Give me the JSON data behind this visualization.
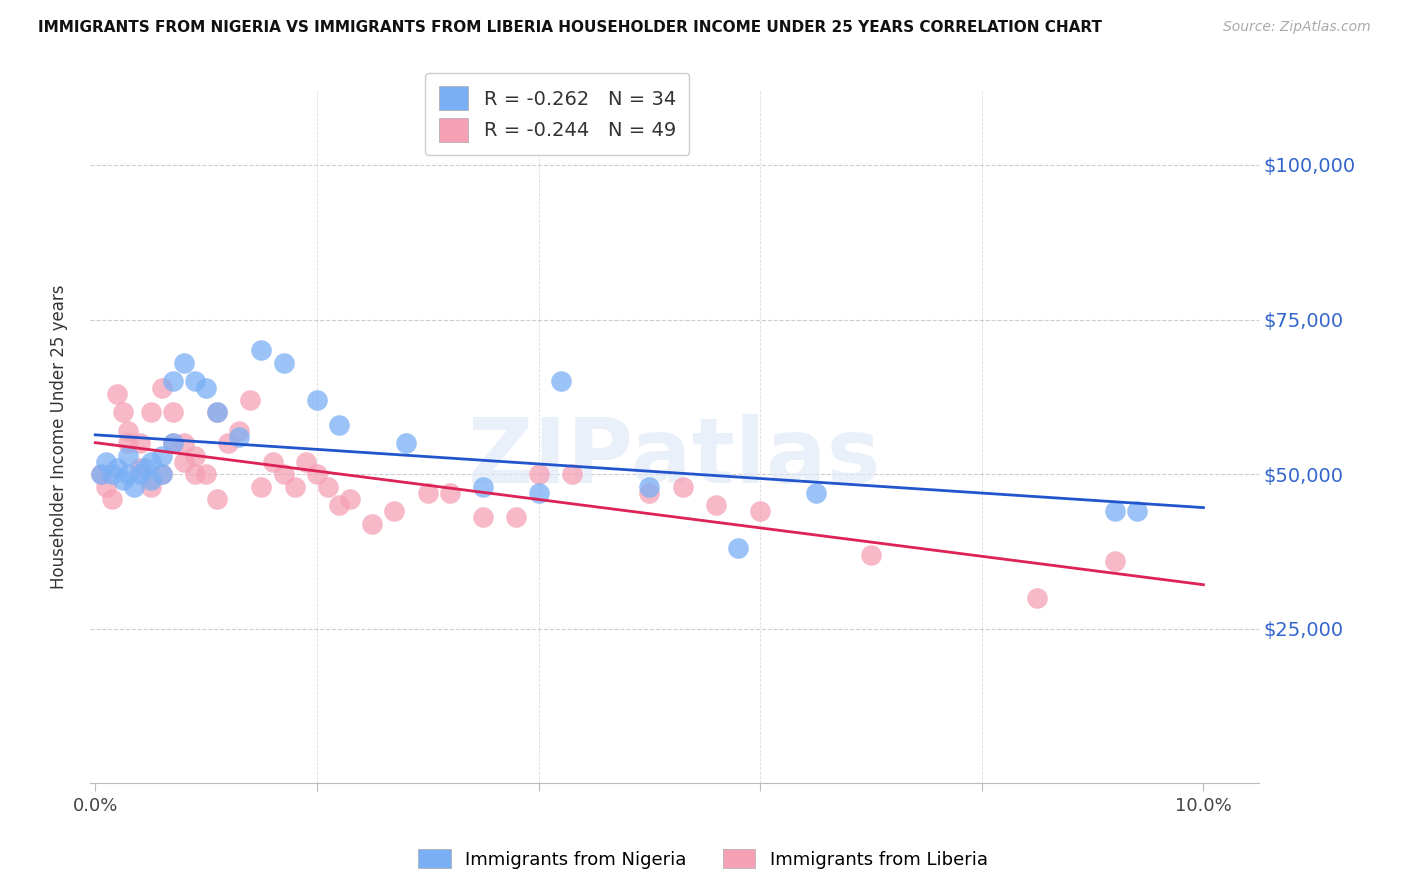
{
  "title": "IMMIGRANTS FROM NIGERIA VS IMMIGRANTS FROM LIBERIA HOUSEHOLDER INCOME UNDER 25 YEARS CORRELATION CHART",
  "source": "Source: ZipAtlas.com",
  "ylabel": "Householder Income Under 25 years",
  "ytick_labels": [
    "$25,000",
    "$50,000",
    "$75,000",
    "$100,000"
  ],
  "ytick_values": [
    25000,
    50000,
    75000,
    100000
  ],
  "ylim": [
    0,
    112000
  ],
  "xlim": [
    -0.0005,
    0.105
  ],
  "legend_nigeria": "R = -0.262   N = 34",
  "legend_liberia": "R = -0.244   N = 49",
  "nigeria_color": "#7aaff5",
  "liberia_color": "#f5a0b5",
  "nigeria_line_color": "#2255cc",
  "liberia_line_color": "#dd2255",
  "watermark": "ZIPatlas",
  "nigeria_x": [
    0.0005,
    0.001,
    0.0015,
    0.002,
    0.0025,
    0.003,
    0.003,
    0.0035,
    0.004,
    0.0045,
    0.005,
    0.005,
    0.006,
    0.006,
    0.007,
    0.007,
    0.008,
    0.009,
    0.01,
    0.011,
    0.013,
    0.015,
    0.017,
    0.02,
    0.022,
    0.028,
    0.035,
    0.04,
    0.042,
    0.05,
    0.058,
    0.065,
    0.092,
    0.094
  ],
  "nigeria_y": [
    50000,
    52000,
    50000,
    51000,
    49000,
    50000,
    53000,
    48000,
    50000,
    51000,
    49000,
    52000,
    50000,
    53000,
    65000,
    55000,
    68000,
    65000,
    64000,
    60000,
    56000,
    70000,
    68000,
    62000,
    58000,
    55000,
    48000,
    47000,
    65000,
    48000,
    38000,
    47000,
    44000,
    44000
  ],
  "liberia_x": [
    0.0005,
    0.001,
    0.0015,
    0.002,
    0.0025,
    0.003,
    0.003,
    0.004,
    0.004,
    0.005,
    0.005,
    0.006,
    0.006,
    0.007,
    0.007,
    0.008,
    0.008,
    0.009,
    0.009,
    0.01,
    0.011,
    0.011,
    0.012,
    0.013,
    0.014,
    0.015,
    0.016,
    0.017,
    0.018,
    0.019,
    0.02,
    0.021,
    0.022,
    0.023,
    0.025,
    0.027,
    0.03,
    0.032,
    0.035,
    0.038,
    0.04,
    0.043,
    0.05,
    0.053,
    0.056,
    0.06,
    0.07,
    0.085,
    0.092
  ],
  "liberia_y": [
    50000,
    48000,
    46000,
    63000,
    60000,
    55000,
    57000,
    51000,
    55000,
    48000,
    60000,
    50000,
    64000,
    55000,
    60000,
    55000,
    52000,
    50000,
    53000,
    50000,
    46000,
    60000,
    55000,
    57000,
    62000,
    48000,
    52000,
    50000,
    48000,
    52000,
    50000,
    48000,
    45000,
    46000,
    42000,
    44000,
    47000,
    47000,
    43000,
    43000,
    50000,
    50000,
    47000,
    48000,
    45000,
    44000,
    37000,
    30000,
    36000
  ],
  "xtick_positions": [
    0.0,
    0.02,
    0.04,
    0.06,
    0.08,
    0.1
  ],
  "xtick_labels": [
    "0.0%",
    "",
    "",
    "",
    "",
    "10.0%"
  ],
  "bottom_legend_items": [
    "Immigrants from Nigeria",
    "Immigrants from Liberia"
  ]
}
